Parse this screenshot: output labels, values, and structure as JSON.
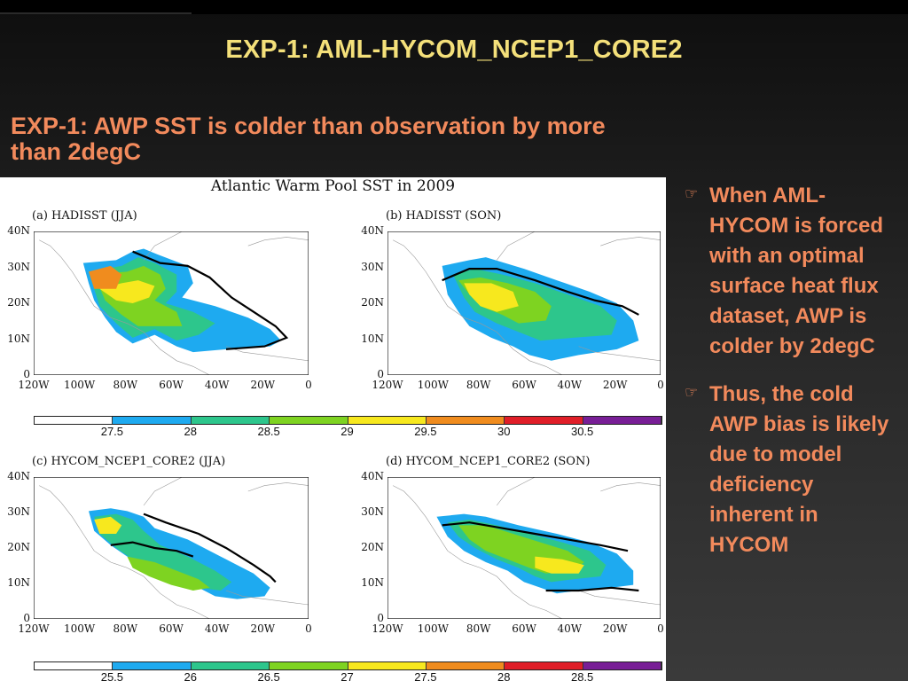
{
  "slide": {
    "title": "EXP-1: AML-HYCOM_NCEP1_CORE2",
    "subtitle": "EXP-1: AWP SST is colder than observation by more than 2degC"
  },
  "figure": {
    "title": "Atlantic Warm Pool SST in 2009",
    "panels": [
      {
        "label": "(a) HADISST (JJA)"
      },
      {
        "label": "(b) HADISST (SON)"
      },
      {
        "label": "(c) HYCOM_NCEP1_CORE2 (JJA)"
      },
      {
        "label": "(d) HYCOM_NCEP1_CORE2 (SON)"
      }
    ],
    "lat_ticks": [
      "40N",
      "30N",
      "20N",
      "10N",
      "0"
    ],
    "lon_ticks": [
      "120W",
      "100W",
      "80W",
      "60W",
      "40W",
      "20W",
      "0"
    ],
    "colorbar_top": {
      "labels": [
        "27.5",
        "28",
        "28.5",
        "29",
        "29.5",
        "30",
        "30.5"
      ]
    },
    "colorbar_bottom": {
      "labels": [
        "25.5",
        "26",
        "26.5",
        "27",
        "27.5",
        "28",
        "28.5"
      ]
    },
    "colorbar_colors": [
      "#ffffff",
      "#1eaaf0",
      "#2dc68c",
      "#7ed321",
      "#f7e81e",
      "#f08c1e",
      "#e01e28",
      "#781e96"
    ]
  },
  "bullets": [
    {
      "icon": "pointing-hand-icon",
      "text": "When AML-HYCOM is forced with an optimal surface heat flux dataset, AWP is colder by 2degC"
    },
    {
      "icon": "pointing-hand-icon",
      "text": "Thus, the cold AWP bias is likely due to model deficiency inherent in HYCOM"
    }
  ]
}
